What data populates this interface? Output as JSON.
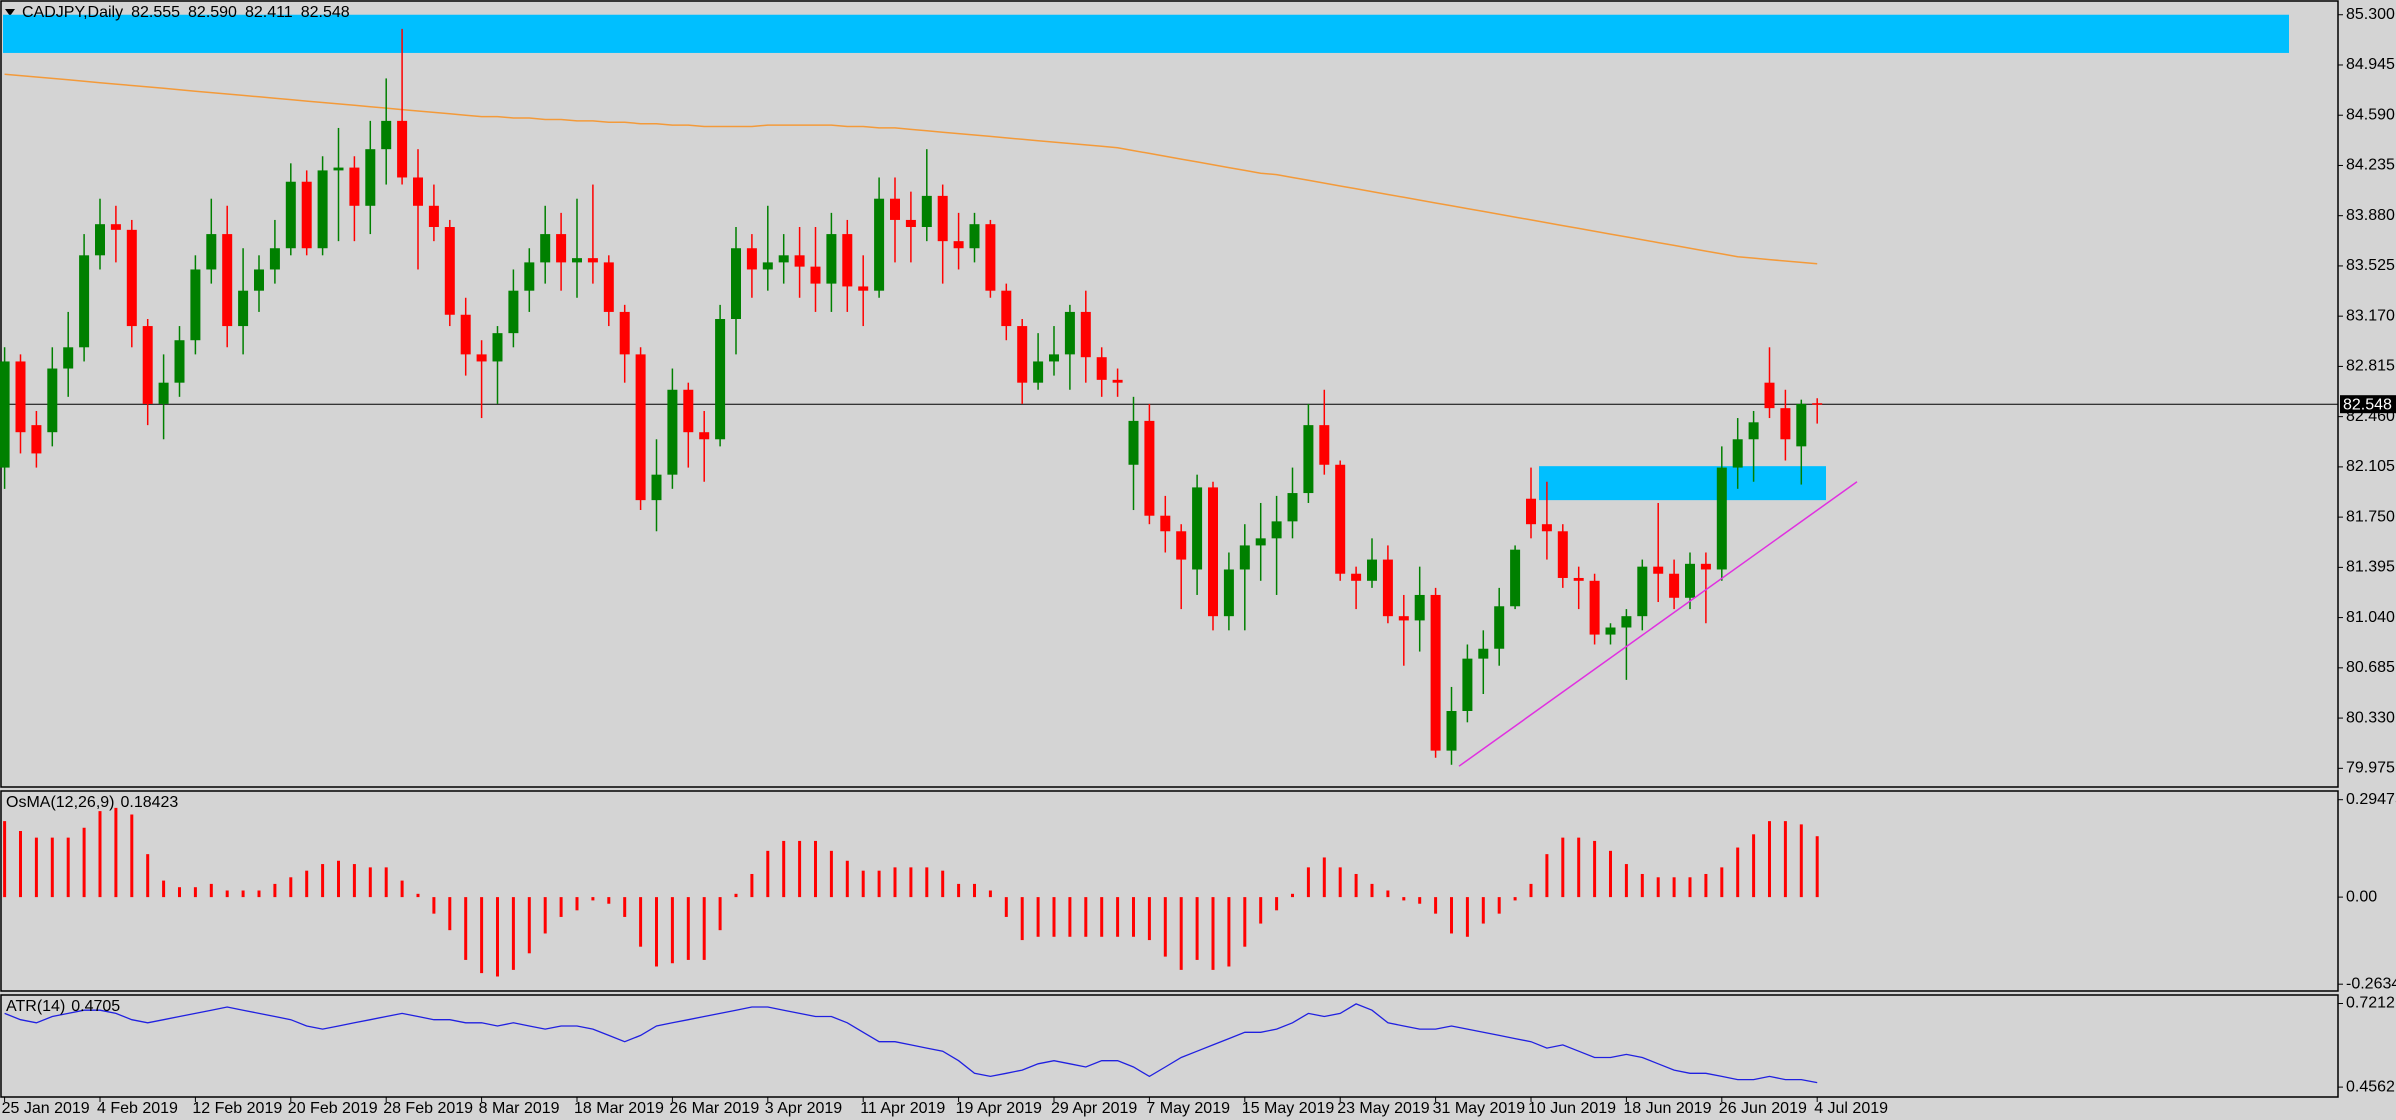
{
  "chart_data": [
    {
      "type": "candlestick",
      "title": "CADJPY,Daily",
      "header_labels": [
        "82.555",
        "82.590",
        "82.411",
        "82.548"
      ],
      "up_color": "#008000",
      "down_color": "#ff0000",
      "categories": [
        "25 Jan 2019",
        null,
        null,
        null,
        null,
        null,
        "4 Feb 2019",
        null,
        null,
        null,
        null,
        null,
        "12 Feb 2019",
        null,
        null,
        null,
        null,
        null,
        "20 Feb 2019",
        null,
        null,
        null,
        null,
        null,
        "28 Feb 2019",
        null,
        null,
        null,
        null,
        null,
        "8 Mar 2019",
        null,
        null,
        null,
        null,
        null,
        "18 Mar 2019",
        null,
        null,
        null,
        null,
        null,
        "26 Mar 2019",
        null,
        null,
        null,
        null,
        null,
        "3 Apr 2019",
        null,
        null,
        null,
        null,
        null,
        "11 Apr 2019",
        null,
        null,
        null,
        null,
        null,
        "19 Apr 2019",
        null,
        null,
        null,
        null,
        null,
        "29 Apr 2019",
        null,
        null,
        null,
        null,
        null,
        "7 May 2019",
        null,
        null,
        null,
        null,
        null,
        "15 May 2019",
        null,
        null,
        null,
        null,
        null,
        "23 May 2019",
        null,
        null,
        null,
        null,
        null,
        "31 May 2019",
        null,
        null,
        null,
        null,
        null,
        "10 Jun 2019",
        null,
        null,
        null,
        null,
        null,
        "18 Jun 2019",
        null,
        null,
        null,
        null,
        null,
        "26 Jun 2019",
        null,
        null,
        null,
        null,
        null,
        "4 Jul 2019"
      ],
      "open": [
        82.1,
        82.85,
        82.4,
        82.35,
        82.8,
        82.95,
        83.6,
        83.82,
        83.78,
        83.1,
        82.55,
        82.7,
        83.0,
        83.5,
        83.75,
        83.1,
        83.35,
        83.5,
        83.65,
        84.12,
        83.65,
        84.2,
        84.22,
        83.95,
        84.35,
        84.55,
        84.15,
        83.95,
        83.8,
        83.18,
        82.9,
        82.85,
        83.05,
        83.35,
        83.55,
        83.75,
        83.55,
        83.58,
        83.55,
        83.2,
        82.9,
        81.87,
        82.05,
        82.65,
        82.35,
        82.3,
        83.15,
        83.65,
        83.5,
        83.55,
        83.6,
        83.52,
        83.4,
        83.75,
        83.38,
        83.35,
        84.0,
        83.85,
        83.8,
        84.02,
        83.7,
        83.65,
        83.82,
        83.35,
        83.1,
        82.7,
        82.85,
        82.9,
        83.2,
        82.88,
        82.72,
        82.12,
        82.43,
        81.76,
        81.65,
        81.38,
        81.96,
        81.05,
        81.38,
        81.55,
        81.6,
        81.72,
        81.92,
        82.4,
        82.12,
        81.35,
        81.3,
        81.45,
        81.05,
        81.02,
        81.2,
        80.1,
        80.38,
        80.75,
        80.82,
        81.12,
        81.88,
        81.7,
        81.65,
        81.32,
        81.3,
        80.92,
        80.97,
        81.05,
        81.4,
        81.35,
        81.18,
        81.42,
        81.38,
        82.1,
        82.3,
        82.7,
        82.52,
        82.25,
        82.555
      ],
      "high": [
        82.95,
        82.9,
        82.5,
        82.95,
        83.2,
        83.75,
        84.0,
        83.95,
        83.85,
        83.15,
        82.9,
        83.1,
        83.6,
        84.0,
        83.95,
        83.65,
        83.6,
        83.85,
        84.25,
        84.2,
        84.3,
        84.5,
        84.3,
        84.55,
        84.85,
        85.2,
        84.35,
        84.1,
        83.85,
        83.3,
        83.0,
        83.1,
        83.5,
        83.65,
        83.95,
        83.9,
        84.0,
        84.1,
        83.6,
        83.25,
        82.95,
        82.3,
        82.8,
        82.7,
        82.5,
        83.25,
        83.8,
        83.75,
        83.95,
        83.75,
        83.8,
        83.8,
        83.9,
        83.85,
        83.6,
        84.15,
        84.15,
        84.05,
        84.35,
        84.1,
        83.9,
        83.9,
        83.85,
        83.4,
        83.15,
        83.05,
        83.1,
        83.25,
        83.35,
        82.95,
        82.8,
        82.6,
        82.55,
        81.9,
        81.7,
        82.05,
        82.0,
        81.5,
        81.7,
        81.85,
        81.9,
        82.1,
        82.55,
        82.65,
        82.15,
        81.4,
        81.6,
        81.55,
        81.2,
        81.4,
        81.25,
        80.55,
        80.85,
        80.95,
        81.25,
        81.55,
        82.1,
        82.0,
        81.7,
        81.4,
        81.35,
        81.0,
        81.1,
        81.45,
        81.85,
        81.45,
        81.5,
        81.5,
        82.25,
        82.45,
        82.5,
        82.95,
        82.65,
        82.58,
        82.59
      ],
      "low": [
        81.95,
        82.2,
        82.1,
        82.25,
        82.6,
        82.85,
        83.5,
        83.55,
        82.95,
        82.4,
        82.3,
        82.6,
        82.9,
        83.4,
        82.95,
        82.9,
        83.2,
        83.4,
        83.6,
        83.6,
        83.6,
        83.7,
        83.7,
        83.75,
        84.1,
        84.1,
        83.5,
        83.7,
        83.1,
        82.75,
        82.45,
        82.55,
        82.95,
        83.2,
        83.4,
        83.35,
        83.3,
        83.4,
        83.1,
        82.7,
        81.8,
        81.65,
        81.95,
        82.1,
        82.0,
        82.25,
        82.9,
        83.3,
        83.35,
        83.4,
        83.3,
        83.2,
        83.2,
        83.2,
        83.1,
        83.3,
        83.55,
        83.55,
        83.7,
        83.4,
        83.5,
        83.55,
        83.3,
        83.0,
        82.55,
        82.65,
        82.75,
        82.65,
        82.7,
        82.6,
        82.6,
        81.8,
        81.7,
        81.5,
        81.1,
        81.2,
        80.95,
        80.95,
        80.95,
        81.3,
        81.2,
        81.6,
        81.85,
        82.05,
        81.3,
        81.1,
        81.25,
        81.0,
        80.7,
        80.8,
        80.05,
        80.0,
        80.3,
        80.5,
        80.7,
        81.1,
        81.6,
        81.45,
        81.25,
        81.1,
        80.85,
        80.85,
        80.6,
        80.95,
        81.15,
        81.1,
        81.1,
        81.0,
        81.3,
        81.95,
        82.0,
        82.45,
        82.15,
        81.98,
        82.411
      ],
      "close": [
        82.85,
        82.35,
        82.2,
        82.8,
        82.95,
        83.6,
        83.82,
        83.78,
        83.1,
        82.55,
        82.7,
        83.0,
        83.5,
        83.75,
        83.1,
        83.35,
        83.5,
        83.65,
        84.12,
        83.65,
        84.2,
        84.22,
        83.95,
        84.35,
        84.55,
        84.15,
        83.95,
        83.8,
        83.18,
        82.9,
        82.85,
        83.05,
        83.35,
        83.55,
        83.75,
        83.55,
        83.58,
        83.55,
        83.2,
        82.9,
        81.87,
        82.05,
        82.65,
        82.35,
        82.3,
        83.15,
        83.65,
        83.5,
        83.55,
        83.6,
        83.52,
        83.4,
        83.75,
        83.38,
        83.35,
        84.0,
        83.85,
        83.8,
        84.02,
        83.7,
        83.65,
        83.82,
        83.35,
        83.1,
        82.7,
        82.85,
        82.9,
        83.2,
        82.88,
        82.72,
        82.7,
        82.43,
        81.76,
        81.65,
        81.45,
        81.96,
        81.05,
        81.38,
        81.55,
        81.6,
        81.72,
        81.92,
        82.4,
        82.12,
        81.35,
        81.3,
        81.45,
        81.05,
        81.02,
        81.2,
        80.1,
        80.38,
        80.75,
        80.82,
        81.12,
        81.52,
        81.7,
        81.65,
        81.32,
        81.3,
        80.92,
        80.97,
        81.05,
        81.4,
        81.35,
        81.18,
        81.42,
        81.38,
        82.1,
        82.3,
        82.42,
        82.52,
        82.3,
        82.55,
        82.548
      ],
      "ma": {
        "color": "#f39a3a",
        "values": [
          84.88,
          84.87,
          84.86,
          84.85,
          84.84,
          84.83,
          84.82,
          84.81,
          84.8,
          84.79,
          84.78,
          84.77,
          84.76,
          84.75,
          84.74,
          84.73,
          84.72,
          84.71,
          84.7,
          84.69,
          84.68,
          84.67,
          84.66,
          84.65,
          84.64,
          84.63,
          84.62,
          84.61,
          84.6,
          84.59,
          84.58,
          84.58,
          84.57,
          84.57,
          84.56,
          84.56,
          84.55,
          84.55,
          84.54,
          84.54,
          84.53,
          84.53,
          84.52,
          84.52,
          84.51,
          84.51,
          84.51,
          84.51,
          84.52,
          84.52,
          84.52,
          84.52,
          84.52,
          84.51,
          84.51,
          84.5,
          84.5,
          84.49,
          84.48,
          84.47,
          84.46,
          84.45,
          84.44,
          84.43,
          84.42,
          84.41,
          84.4,
          84.39,
          84.38,
          84.37,
          84.36,
          84.34,
          84.32,
          84.3,
          84.28,
          84.26,
          84.24,
          84.22,
          84.2,
          84.18,
          84.17,
          84.15,
          84.13,
          84.11,
          84.09,
          84.07,
          84.05,
          84.03,
          84.01,
          83.99,
          83.97,
          83.95,
          83.93,
          83.91,
          83.89,
          83.87,
          83.85,
          83.83,
          83.81,
          83.79,
          83.77,
          83.75,
          83.73,
          83.71,
          83.69,
          83.67,
          83.65,
          83.63,
          83.61,
          83.59,
          83.58,
          83.57,
          83.56,
          83.55,
          83.54
        ]
      },
      "zones": [
        {
          "from": 85.03,
          "to": 85.3,
          "color": "#00bfff"
        },
        {
          "from": 81.87,
          "to": 82.11,
          "color": "#00bfff"
        }
      ],
      "trendline": {
        "color": "#e030e0",
        "values": [
          79.99,
          82.0
        ]
      },
      "ylim": [
        79.85,
        85.39
      ],
      "yticks": [
        {
          "value": 85.3,
          "label": "85.300"
        },
        84.945,
        {
          "value": 84.59,
          "label": "84.590"
        },
        84.235,
        {
          "value": 83.88,
          "label": "83.880"
        },
        83.525,
        {
          "value": 83.17,
          "label": "83.170"
        },
        82.815,
        {
          "value": 82.46,
          "label": "82.460"
        },
        82.105,
        {
          "value": 81.75,
          "label": "81.750"
        },
        81.395,
        {
          "value": 81.04,
          "label": "81.040"
        },
        80.685,
        {
          "value": 80.33,
          "label": "80.330"
        },
        79.975
      ]
    },
    {
      "type": "histogram",
      "title": "OsMA(12,26,9)",
      "color": "#ff0000",
      "values": [
        0.23,
        0.2,
        0.18,
        0.18,
        0.18,
        0.21,
        0.26,
        0.27,
        0.25,
        0.13,
        0.05,
        0.03,
        0.03,
        0.04,
        0.02,
        0.02,
        0.02,
        0.04,
        0.06,
        0.08,
        0.1,
        0.11,
        0.1,
        0.09,
        0.09,
        0.05,
        0.01,
        -0.05,
        -0.1,
        -0.19,
        -0.23,
        -0.24,
        -0.22,
        -0.17,
        -0.11,
        -0.06,
        -0.04,
        -0.01,
        -0.02,
        -0.06,
        -0.15,
        -0.21,
        -0.2,
        -0.19,
        -0.19,
        -0.1,
        0.01,
        0.07,
        0.14,
        0.17,
        0.17,
        0.17,
        0.14,
        0.11,
        0.08,
        0.08,
        0.09,
        0.09,
        0.09,
        0.08,
        0.04,
        0.04,
        0.02,
        -0.06,
        -0.13,
        -0.12,
        -0.12,
        -0.12,
        -0.12,
        -0.12,
        -0.12,
        -0.12,
        -0.13,
        -0.18,
        -0.22,
        -0.19,
        -0.22,
        -0.21,
        -0.15,
        -0.08,
        -0.04,
        0.01,
        0.09,
        0.12,
        0.09,
        0.07,
        0.04,
        0.02,
        -0.01,
        -0.02,
        -0.05,
        -0.11,
        -0.12,
        -0.08,
        -0.05,
        -0.01,
        0.04,
        0.13,
        0.18,
        0.18,
        0.17,
        0.14,
        0.1,
        0.07,
        0.06,
        0.06,
        0.06,
        0.07,
        0.09,
        0.15,
        0.19,
        0.23,
        0.23,
        0.22,
        0.18423
      ],
      "ylim": [
        -0.281,
        0.318
      ],
      "yticks": [
        0.29475,
        {
          "value": 0,
          "label": "0.00"
        },
        -0.26341
      ]
    },
    {
      "type": "line",
      "title": "ATR(14)",
      "color": "#2020e0",
      "values": [
        0.69,
        0.67,
        0.66,
        0.68,
        0.69,
        0.7,
        0.7,
        0.69,
        0.67,
        0.66,
        0.67,
        0.68,
        0.69,
        0.7,
        0.71,
        0.7,
        0.69,
        0.68,
        0.67,
        0.65,
        0.64,
        0.65,
        0.66,
        0.67,
        0.68,
        0.69,
        0.68,
        0.67,
        0.67,
        0.66,
        0.66,
        0.65,
        0.66,
        0.65,
        0.64,
        0.65,
        0.65,
        0.64,
        0.62,
        0.6,
        0.62,
        0.65,
        0.66,
        0.67,
        0.68,
        0.69,
        0.7,
        0.71,
        0.71,
        0.7,
        0.69,
        0.68,
        0.68,
        0.66,
        0.63,
        0.6,
        0.6,
        0.59,
        0.58,
        0.57,
        0.54,
        0.5,
        0.49,
        0.5,
        0.51,
        0.53,
        0.54,
        0.53,
        0.52,
        0.54,
        0.54,
        0.52,
        0.49,
        0.52,
        0.55,
        0.57,
        0.59,
        0.61,
        0.63,
        0.63,
        0.64,
        0.66,
        0.69,
        0.68,
        0.69,
        0.72,
        0.7,
        0.66,
        0.65,
        0.64,
        0.64,
        0.65,
        0.64,
        0.63,
        0.62,
        0.61,
        0.6,
        0.58,
        0.59,
        0.57,
        0.55,
        0.55,
        0.56,
        0.55,
        0.53,
        0.51,
        0.5,
        0.5,
        0.49,
        0.48,
        0.48,
        0.49,
        0.48,
        0.48,
        0.4705
      ],
      "ylim": [
        0.428,
        0.745
      ],
      "yticks": [
        0.7212,
        0.4562
      ]
    }
  ]
}
